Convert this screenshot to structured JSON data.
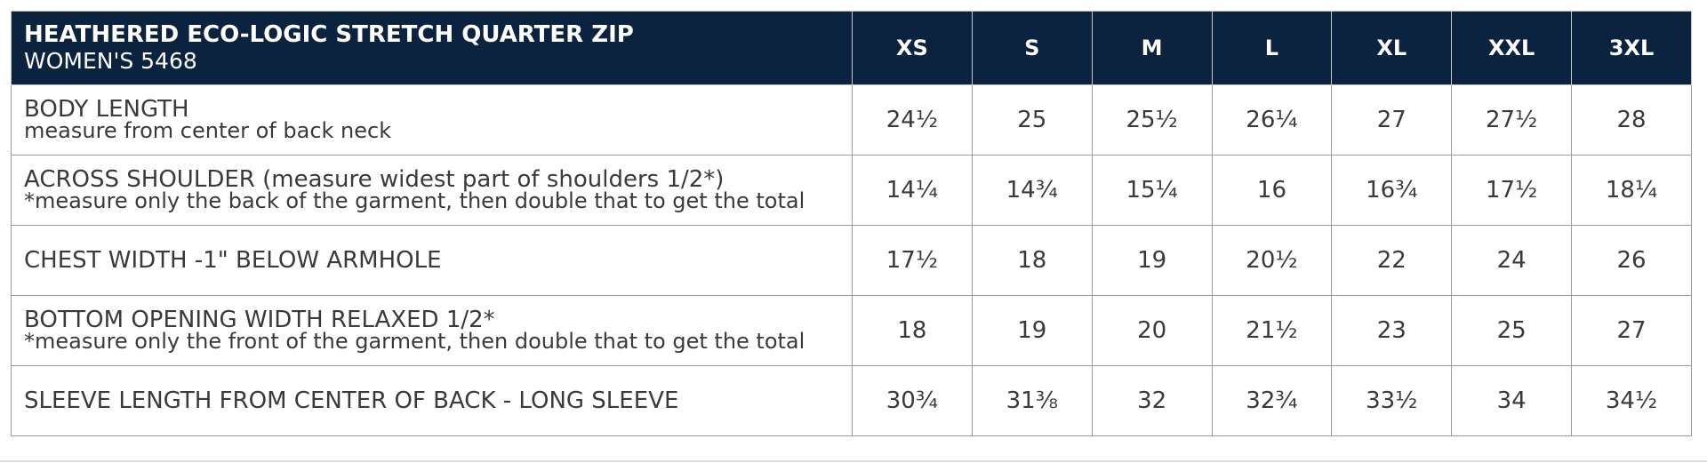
{
  "header": {
    "title": "HEATHERED ECO-LOGIC STRETCH QUARTER ZIP",
    "subtitle": "WOMEN'S 5468"
  },
  "sizes": [
    "XS",
    "S",
    "M",
    "L",
    "XL",
    "XXL",
    "3XL"
  ],
  "rows": [
    {
      "label": "BODY LENGTH",
      "note": "measure from center of back neck",
      "values": [
        "24½",
        "25",
        "25½",
        "26¼",
        "27",
        "27½",
        "28"
      ]
    },
    {
      "label": "ACROSS SHOULDER (measure widest part of shoulders 1/2*)",
      "note": "*measure only the back of the garment, then double that to get the total",
      "values": [
        "14¼",
        "14¾",
        "15¼",
        "16",
        "16¾",
        "17½",
        "18¼"
      ]
    },
    {
      "label": "CHEST WIDTH -1\" BELOW ARMHOLE",
      "values": [
        "17½",
        "18",
        "19",
        "20½",
        "22",
        "24",
        "26"
      ]
    },
    {
      "label": "BOTTOM OPENING WIDTH RELAXED 1/2*",
      "note": "*measure only the front of the garment, then double that to get the total",
      "values": [
        "18",
        "19",
        "20",
        "21½",
        "23",
        "25",
        "27"
      ]
    },
    {
      "label": "SLEEVE LENGTH FROM CENTER OF BACK - LONG SLEEVE",
      "values": [
        "30¾",
        "31⅜",
        "32",
        "32¾",
        "33½",
        "34",
        "34½"
      ]
    }
  ]
}
